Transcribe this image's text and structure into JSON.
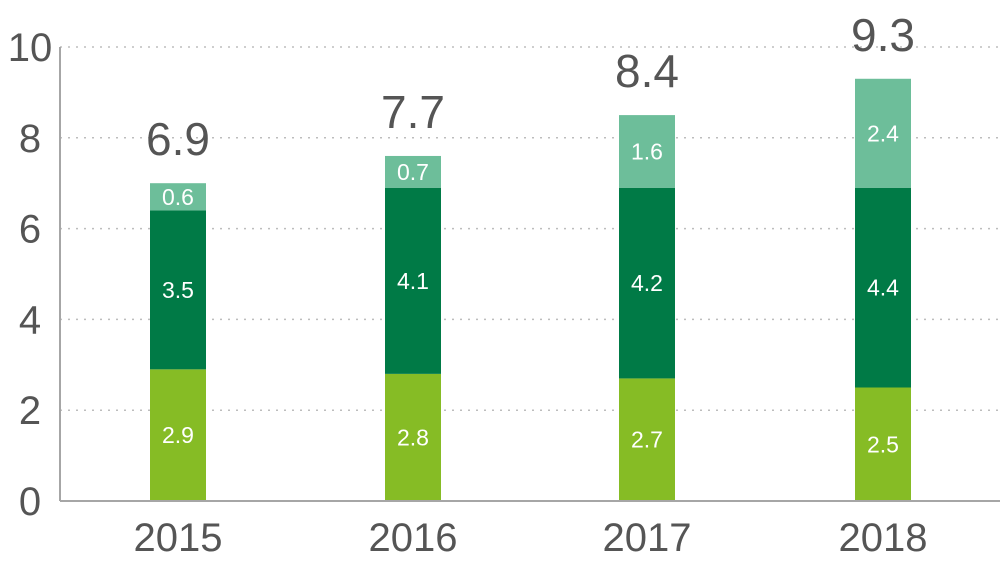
{
  "chart_data": {
    "type": "bar",
    "stacked": true,
    "title": "",
    "xlabel": "",
    "ylabel": "",
    "categories": [
      "2015",
      "2016",
      "2017",
      "2018"
    ],
    "series": [
      {
        "values": [
          2.9,
          2.8,
          2.7,
          2.5
        ],
        "color": "#86BC25"
      },
      {
        "values": [
          3.5,
          4.1,
          4.2,
          4.4
        ],
        "color": "#007A46"
      },
      {
        "values": [
          0.6,
          0.7,
          1.6,
          2.4
        ],
        "color": "#6DBE9A"
      }
    ],
    "totals": [
      "6.9",
      "7.7",
      "8.4",
      "9.3"
    ],
    "segment_labels": [
      [
        "2.9",
        "2.8",
        "2.7",
        "2.5"
      ],
      [
        "3.5",
        "4.1",
        "4.2",
        "4.4"
      ],
      [
        "0.6",
        "0.7",
        "1.6",
        "2.4"
      ]
    ],
    "ylim": [
      0,
      10
    ],
    "yticks": [
      "0",
      "2",
      "4",
      "6",
      "8",
      "10"
    ],
    "grid": true,
    "legend": "none"
  }
}
